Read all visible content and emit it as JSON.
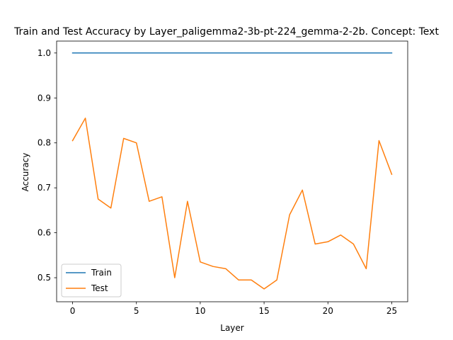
{
  "chart_data": {
    "type": "line",
    "title": "Train and Test Accuracy by Layer_paligemma2-3b-pt-224_gemma-2-2b. Concept: Text",
    "xlabel": "Layer",
    "ylabel": "Accuracy",
    "xlim": [
      -1.25,
      26.25
    ],
    "ylim": [
      0.4465,
      1.0265
    ],
    "xticks": [
      0,
      5,
      10,
      15,
      20,
      25
    ],
    "xtick_labels": [
      "0",
      "5",
      "10",
      "15",
      "20",
      "25"
    ],
    "yticks": [
      0.5,
      0.6,
      0.7,
      0.8,
      0.9,
      1.0
    ],
    "ytick_labels": [
      "0.5",
      "0.6",
      "0.7",
      "0.8",
      "0.9",
      "1.0"
    ],
    "grid": false,
    "legend_position": "lower-left",
    "x": [
      0,
      1,
      2,
      3,
      4,
      5,
      6,
      7,
      8,
      9,
      10,
      11,
      12,
      13,
      14,
      15,
      16,
      17,
      18,
      19,
      20,
      21,
      22,
      23,
      24,
      25
    ],
    "series": [
      {
        "name": "Train",
        "color": "#1f77b4",
        "values": [
          1.0,
          1.0,
          1.0,
          1.0,
          1.0,
          1.0,
          1.0,
          1.0,
          1.0,
          1.0,
          1.0,
          1.0,
          1.0,
          1.0,
          1.0,
          1.0,
          1.0,
          1.0,
          1.0,
          1.0,
          1.0,
          1.0,
          1.0,
          1.0,
          1.0,
          1.0
        ]
      },
      {
        "name": "Test",
        "color": "#ff7f0e",
        "values": [
          0.805,
          0.855,
          0.675,
          0.655,
          0.81,
          0.8,
          0.67,
          0.68,
          0.5,
          0.67,
          0.535,
          0.525,
          0.52,
          0.495,
          0.495,
          0.475,
          0.495,
          0.64,
          0.695,
          0.575,
          0.58,
          0.595,
          0.575,
          0.52,
          0.805,
          0.73
        ]
      }
    ]
  }
}
